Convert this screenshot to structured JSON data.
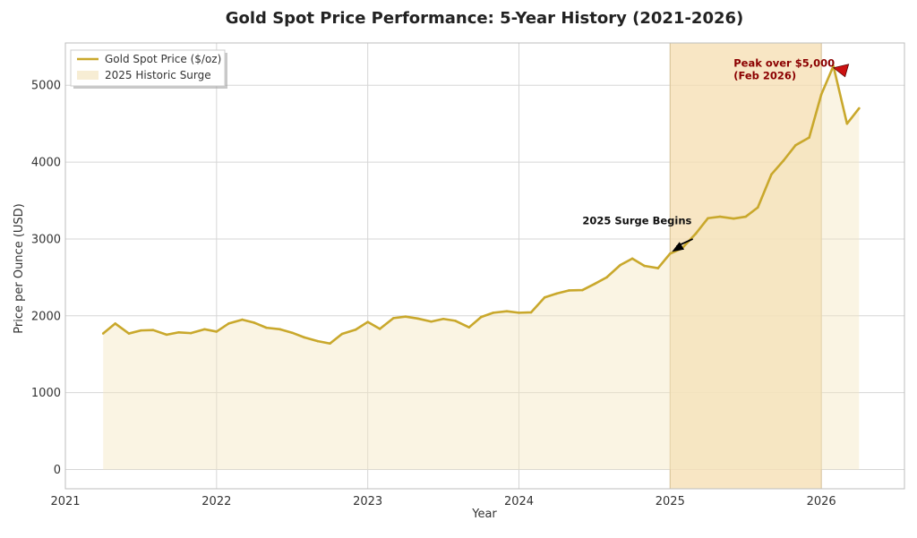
{
  "colors": {
    "line": "#c9a82c",
    "area_fill": "#f3e6c2",
    "surge_fill": "#f6ddb0",
    "grid": "#d6d6d6",
    "axes": "#bdbdbd",
    "peak_arrow": "#cc1111",
    "arrow_black": "#000000"
  },
  "chart_data": {
    "type": "line",
    "title": "Gold Spot Price Performance: 5-Year History (2021-2026)",
    "xlabel": "Year",
    "ylabel": "Price per Ounce (USD)",
    "xlim": [
      2021.0,
      2026.55
    ],
    "ylim": [
      -250,
      5550
    ],
    "x_ticks": [
      2021,
      2022,
      2023,
      2024,
      2025,
      2026
    ],
    "x_tick_labels": [
      "2021",
      "2022",
      "2023",
      "2024",
      "2025",
      "2026"
    ],
    "y_ticks": [
      0,
      1000,
      2000,
      3000,
      4000,
      5000
    ],
    "y_tick_labels": [
      "0",
      "1000",
      "2000",
      "3000",
      "4000",
      "5000"
    ],
    "grid": true,
    "legend_position": "top-left",
    "legend": [
      {
        "label": "Gold Spot Price ($/oz)",
        "kind": "line"
      },
      {
        "label": "2025 Historic Surge",
        "kind": "patch"
      }
    ],
    "series": [
      {
        "name": "Gold Spot Price ($/oz)",
        "points": [
          [
            2021.25,
            1770
          ],
          [
            2021.33,
            1900
          ],
          [
            2021.42,
            1770
          ],
          [
            2021.5,
            1810
          ],
          [
            2021.58,
            1815
          ],
          [
            2021.67,
            1755
          ],
          [
            2021.75,
            1785
          ],
          [
            2021.83,
            1775
          ],
          [
            2021.92,
            1825
          ],
          [
            2022.0,
            1795
          ],
          [
            2022.08,
            1900
          ],
          [
            2022.17,
            1950
          ],
          [
            2022.25,
            1910
          ],
          [
            2022.33,
            1845
          ],
          [
            2022.42,
            1825
          ],
          [
            2022.5,
            1780
          ],
          [
            2022.58,
            1720
          ],
          [
            2022.67,
            1670
          ],
          [
            2022.75,
            1640
          ],
          [
            2022.83,
            1765
          ],
          [
            2022.92,
            1820
          ],
          [
            2023.0,
            1920
          ],
          [
            2023.08,
            1830
          ],
          [
            2023.17,
            1970
          ],
          [
            2023.25,
            1990
          ],
          [
            2023.33,
            1965
          ],
          [
            2023.42,
            1925
          ],
          [
            2023.5,
            1960
          ],
          [
            2023.58,
            1935
          ],
          [
            2023.67,
            1850
          ],
          [
            2023.75,
            1985
          ],
          [
            2023.83,
            2040
          ],
          [
            2023.92,
            2060
          ],
          [
            2024.0,
            2040
          ],
          [
            2024.08,
            2045
          ],
          [
            2024.17,
            2240
          ],
          [
            2024.25,
            2290
          ],
          [
            2024.33,
            2330
          ],
          [
            2024.42,
            2335
          ],
          [
            2024.5,
            2415
          ],
          [
            2024.58,
            2500
          ],
          [
            2024.67,
            2660
          ],
          [
            2024.75,
            2745
          ],
          [
            2024.83,
            2650
          ],
          [
            2024.92,
            2620
          ],
          [
            2025.0,
            2810
          ],
          [
            2025.08,
            2880
          ],
          [
            2025.17,
            3070
          ],
          [
            2025.25,
            3270
          ],
          [
            2025.33,
            3290
          ],
          [
            2025.42,
            3265
          ],
          [
            2025.5,
            3290
          ],
          [
            2025.58,
            3410
          ],
          [
            2025.67,
            3840
          ],
          [
            2025.75,
            4020
          ],
          [
            2025.83,
            4220
          ],
          [
            2025.92,
            4320
          ],
          [
            2026.0,
            4880
          ],
          [
            2026.08,
            5250
          ],
          [
            2026.17,
            4500
          ],
          [
            2026.25,
            4700
          ]
        ]
      }
    ],
    "shaded_region": {
      "label": "2025 Historic Surge",
      "x_start": 2025.0,
      "x_end": 2026.0
    },
    "annotations": [
      {
        "text": "2025 Surge Begins",
        "point": [
          2025.0,
          2810
        ],
        "text_at": [
          2024.42,
          3170
        ]
      },
      {
        "text_lines": [
          "Peak over $5,000",
          "(Feb 2026)"
        ],
        "point": [
          2026.08,
          5250
        ],
        "text_at": [
          2025.42,
          5150
        ]
      }
    ]
  }
}
